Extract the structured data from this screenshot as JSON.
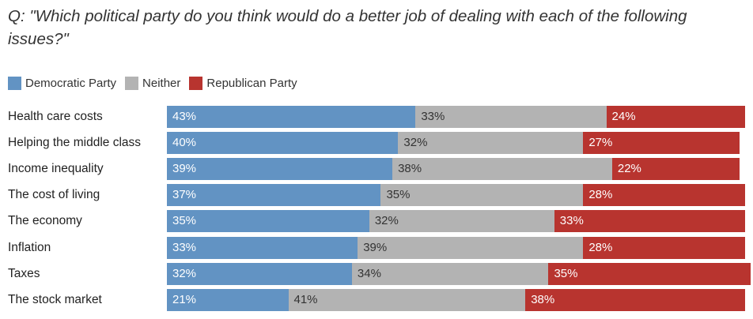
{
  "title": "Q: \"Which political party do you think would do a better job of dealing with each of the following issues?\"",
  "colors": {
    "democratic": "#6293c3",
    "neither": "#b3b3b3",
    "republican": "#b8342f"
  },
  "chart_data": {
    "type": "bar",
    "orientation": "horizontal",
    "stacked": true,
    "title": "Q: \"Which political party do you think would do a better job of dealing with each of the following issues?\"",
    "legend_position": "top-left",
    "categories": [
      "Health care costs",
      "Helping the middle class",
      "Income inequality",
      "The cost of living",
      "The economy",
      "Inflation",
      "Taxes",
      "The stock market"
    ],
    "series": [
      {
        "name": "Democratic Party",
        "color": "#6293c3",
        "values": [
          43,
          40,
          39,
          37,
          35,
          33,
          32,
          21
        ]
      },
      {
        "name": "Neither",
        "color": "#b3b3b3",
        "values": [
          33,
          32,
          38,
          35,
          32,
          39,
          34,
          41
        ]
      },
      {
        "name": "Republican Party",
        "color": "#b8342f",
        "values": [
          24,
          27,
          22,
          28,
          33,
          28,
          35,
          38
        ]
      }
    ],
    "value_suffix": "%"
  }
}
